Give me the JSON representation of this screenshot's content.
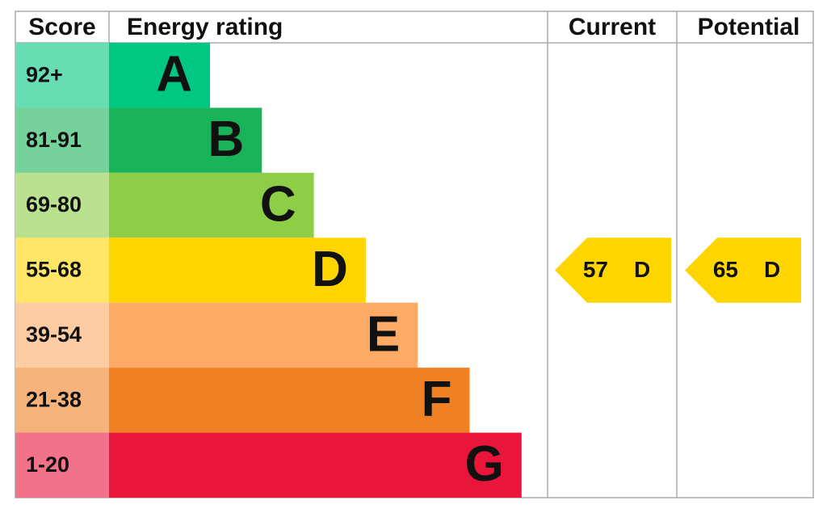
{
  "header": {
    "score": "Score",
    "energy_rating": "Energy rating",
    "current": "Current",
    "potential": "Potential"
  },
  "bands": [
    {
      "range": "92+",
      "letter": "A",
      "color": "#00c781"
    },
    {
      "range": "81-91",
      "letter": "B",
      "color": "#19b459"
    },
    {
      "range": "69-80",
      "letter": "C",
      "color": "#8dce46"
    },
    {
      "range": "55-68",
      "letter": "D",
      "color": "#ffd500"
    },
    {
      "range": "39-54",
      "letter": "E",
      "color": "#fcaa65"
    },
    {
      "range": "21-38",
      "letter": "F",
      "color": "#ef8023"
    },
    {
      "range": "1-20",
      "letter": "G",
      "color": "#e9153b"
    }
  ],
  "current": {
    "score": "57",
    "rating": "D"
  },
  "potential": {
    "score": "65",
    "rating": "D"
  }
}
